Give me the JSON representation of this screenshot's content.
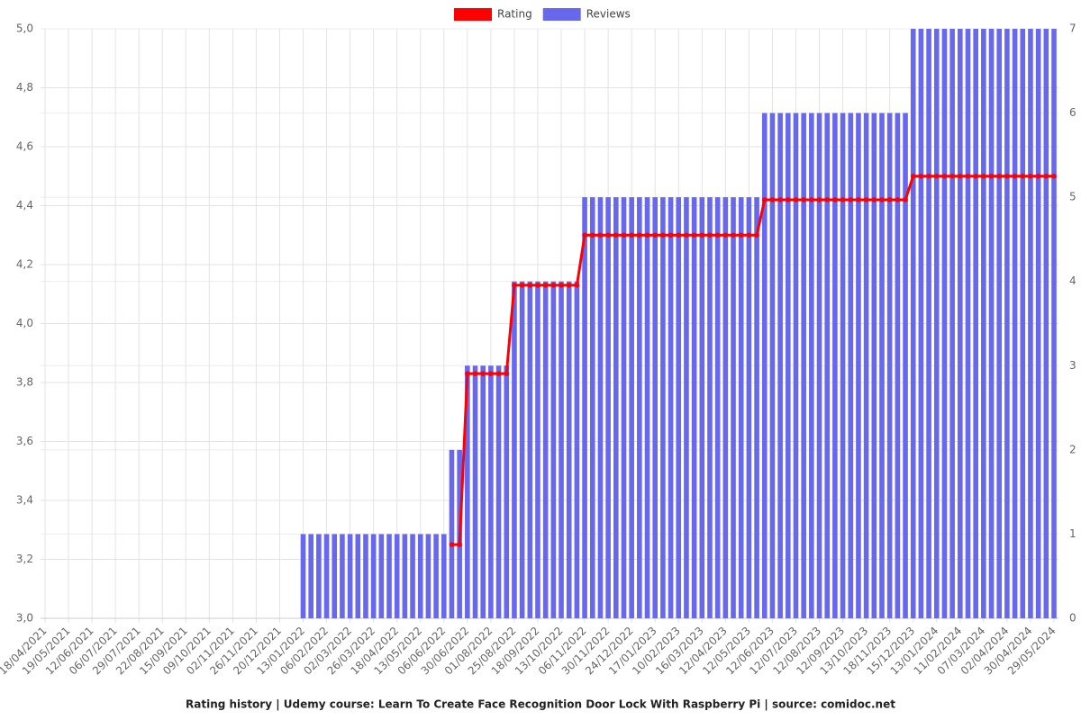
{
  "chart_data": {
    "type": "bar",
    "title": "Rating history | Udemy course: Learn To Create Face Recognition Door Lock With Raspberry Pi | source: comidoc.net",
    "categories": [
      "18/04/2021",
      null,
      null,
      "19/05/2021",
      null,
      null,
      "12/06/2021",
      null,
      null,
      "06/07/2021",
      null,
      null,
      "29/07/2021",
      null,
      null,
      "22/08/2021",
      null,
      null,
      "15/09/2021",
      null,
      null,
      "09/10/2021",
      null,
      null,
      "02/11/2021",
      null,
      null,
      "26/11/2021",
      null,
      null,
      "20/12/2021",
      null,
      null,
      "13/01/2022",
      null,
      null,
      "06/02/2022",
      null,
      null,
      "02/03/2022",
      null,
      null,
      "26/03/2022",
      null,
      null,
      "18/04/2022",
      null,
      null,
      "13/05/2022",
      null,
      null,
      "06/06/2022",
      null,
      null,
      "30/06/2022",
      null,
      null,
      "01/08/2022",
      null,
      null,
      "25/08/2022",
      null,
      null,
      "18/09/2022",
      null,
      null,
      "13/10/2022",
      null,
      null,
      "06/11/2022",
      null,
      null,
      "30/11/2022",
      null,
      null,
      "24/12/2022",
      null,
      null,
      "17/01/2023",
      null,
      null,
      "10/02/2023",
      null,
      null,
      "16/03/2023",
      null,
      null,
      "12/04/2023",
      null,
      null,
      "12/05/2023",
      null,
      null,
      "12/06/2023",
      null,
      null,
      "12/07/2023",
      null,
      null,
      "12/08/2023",
      null,
      null,
      "12/09/2023",
      null,
      null,
      "13/10/2023",
      null,
      null,
      "18/11/2023",
      null,
      null,
      "15/12/2023",
      null,
      null,
      "13/01/2024",
      null,
      null,
      "11/02/2024",
      null,
      null,
      "07/03/2024",
      null,
      null,
      "02/04/2024",
      null,
      null,
      "30/04/2024",
      null,
      null,
      "29/05/2024"
    ],
    "series": [
      {
        "name": "Rating",
        "type": "line",
        "color": "#ff0000",
        "values": [
          null,
          null,
          null,
          null,
          null,
          null,
          null,
          null,
          null,
          null,
          null,
          null,
          null,
          null,
          null,
          null,
          null,
          null,
          null,
          null,
          null,
          null,
          null,
          null,
          null,
          null,
          null,
          null,
          null,
          null,
          null,
          null,
          null,
          null,
          null,
          null,
          null,
          null,
          null,
          null,
          null,
          null,
          null,
          null,
          null,
          null,
          null,
          null,
          null,
          null,
          null,
          null,
          3.25,
          3.25,
          3.83,
          3.83,
          3.83,
          3.83,
          3.83,
          3.83,
          4.13,
          4.13,
          4.13,
          4.13,
          4.13,
          4.13,
          4.13,
          4.13,
          4.13,
          4.3,
          4.3,
          4.3,
          4.3,
          4.3,
          4.3,
          4.3,
          4.3,
          4.3,
          4.3,
          4.3,
          4.3,
          4.3,
          4.3,
          4.3,
          4.3,
          4.3,
          4.3,
          4.3,
          4.3,
          4.3,
          4.3,
          4.3,
          4.42,
          4.42,
          4.42,
          4.42,
          4.42,
          4.42,
          4.42,
          4.42,
          4.42,
          4.42,
          4.42,
          4.42,
          4.42,
          4.42,
          4.42,
          4.42,
          4.42,
          4.42,
          4.42,
          4.5,
          4.5,
          4.5,
          4.5,
          4.5,
          4.5,
          4.5,
          4.5,
          4.5,
          4.5,
          4.5,
          4.5,
          4.5,
          4.5,
          4.5,
          4.5,
          4.5,
          4.5,
          4.5
        ]
      },
      {
        "name": "Reviews",
        "type": "bar",
        "axis": "y2",
        "color": "#6868ee",
        "values": [
          0,
          0,
          0,
          0,
          0,
          0,
          0,
          0,
          0,
          0,
          0,
          0,
          0,
          0,
          0,
          0,
          0,
          0,
          0,
          0,
          0,
          0,
          0,
          0,
          0,
          0,
          0,
          0,
          0,
          0,
          0,
          0,
          0,
          1,
          1,
          1,
          1,
          1,
          1,
          1,
          1,
          1,
          1,
          1,
          1,
          1,
          1,
          1,
          1,
          1,
          1,
          1,
          2,
          2,
          3,
          3,
          3,
          3,
          3,
          3,
          4,
          4,
          4,
          4,
          4,
          4,
          4,
          4,
          4,
          5,
          5,
          5,
          5,
          5,
          5,
          5,
          5,
          5,
          5,
          5,
          5,
          5,
          5,
          5,
          5,
          5,
          5,
          5,
          5,
          5,
          5,
          5,
          6,
          6,
          6,
          6,
          6,
          6,
          6,
          6,
          6,
          6,
          6,
          6,
          6,
          6,
          6,
          6,
          6,
          6,
          6,
          7,
          7,
          7,
          7,
          7,
          7,
          7,
          7,
          7,
          7,
          7,
          7,
          7,
          7,
          7,
          7,
          7,
          7,
          7
        ]
      }
    ],
    "ylim": [
      3.0,
      5.0
    ],
    "yticks": [
      {
        "value": 3.0,
        "label": "3,0"
      },
      {
        "value": 3.2,
        "label": "3,2"
      },
      {
        "value": 3.4,
        "label": "3,4"
      },
      {
        "value": 3.6,
        "label": "3,6"
      },
      {
        "value": 3.8,
        "label": "3,8"
      },
      {
        "value": 4.0,
        "label": "4,0"
      },
      {
        "value": 4.2,
        "label": "4,2"
      },
      {
        "value": 4.4,
        "label": "4,4"
      },
      {
        "value": 4.6,
        "label": "4,6"
      },
      {
        "value": 4.8,
        "label": "4,8"
      },
      {
        "value": 5.0,
        "label": "5,0"
      }
    ],
    "y2lim": [
      0,
      7
    ],
    "y2ticks": [
      0,
      1,
      2,
      3,
      4,
      5,
      6,
      7
    ],
    "grid": true,
    "legend": "top"
  }
}
